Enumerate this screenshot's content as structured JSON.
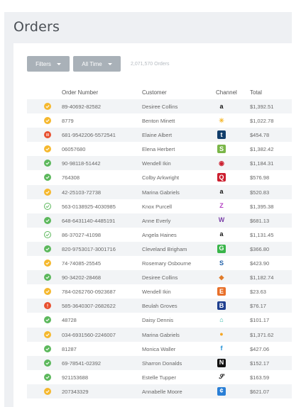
{
  "page": {
    "title": "Orders"
  },
  "toolbar": {
    "filters_label": "Filters",
    "time_label": "All Time",
    "count_text": "2,071,570 Orders"
  },
  "table": {
    "headers": {
      "order_number": "Order Number",
      "customer": "Customer",
      "channel": "Channel",
      "total": "Total"
    },
    "rows": [
      {
        "status": "pending",
        "order": "89-40692-82582",
        "customer": "Desiree Collins",
        "channel": "amazon-icon",
        "total": "$1,392.51"
      },
      {
        "status": "pending",
        "order": "8779",
        "customer": "Benton Minett",
        "channel": "walmart-icon",
        "total": "$1,022.78"
      },
      {
        "status": "paused",
        "order": "681-9542206-5572541",
        "customer": "Elaine Albert",
        "channel": "shopify-store-icon",
        "total": "$454.78"
      },
      {
        "status": "pending",
        "order": "06057680",
        "customer": "Elena Herbert",
        "channel": "shopify-icon",
        "total": "$1,382.42"
      },
      {
        "status": "complete",
        "order": "90-98118-51442",
        "customer": "Wendell Ikin",
        "channel": "target-icon",
        "total": "$1,184.31"
      },
      {
        "status": "complete",
        "order": "764308",
        "customer": "Colby Arkwright",
        "channel": "red-square-icon",
        "total": "$576.98"
      },
      {
        "status": "pending",
        "order": "42-25103-72738",
        "customer": "Marina Gabriels",
        "channel": "amazon-icon",
        "total": "$520.83"
      },
      {
        "status": "complete-outline",
        "order": "563-0138925-4030985",
        "customer": "Knox Purcell",
        "channel": "z-icon",
        "total": "$1,395.38"
      },
      {
        "status": "complete",
        "order": "648-6431140-4485191",
        "customer": "Anne Everly",
        "channel": "w-icon",
        "total": "$681.13"
      },
      {
        "status": "complete-outline",
        "order": "86-37027-41098",
        "customer": "Angela Haines",
        "channel": "amazon-icon",
        "total": "$1,131.45"
      },
      {
        "status": "complete",
        "order": "820-9753017-3001716",
        "customer": "Cleveland Brigham",
        "channel": "green-circle-icon",
        "total": "$366.80"
      },
      {
        "status": "pending",
        "order": "74-74085-25545",
        "customer": "Rosemary Osbourne",
        "channel": "blue-s-icon",
        "total": "$423.90"
      },
      {
        "status": "complete",
        "order": "90-34202-28468",
        "customer": "Desiree Collins",
        "channel": "cube-icon",
        "total": "$1,182.74"
      },
      {
        "status": "pending",
        "order": "784-0262760-0923687",
        "customer": "Wendell Ikin",
        "channel": "etsy-icon",
        "total": "$23.63"
      },
      {
        "status": "error",
        "order": "585-3640307-2682622",
        "customer": "Beulah Groves",
        "channel": "b-icon",
        "total": "$76.17"
      },
      {
        "status": "complete",
        "order": "48728",
        "customer": "Daisy Dennis",
        "channel": "house-icon",
        "total": "$101.17"
      },
      {
        "status": "pending",
        "order": "034-6931560-2246007",
        "customer": "Marina Gabriels",
        "channel": "orange-blob-icon",
        "total": "$1,371.62"
      },
      {
        "status": "complete",
        "order": "81287",
        "customer": "Monica Waller",
        "channel": "f-icon",
        "total": "$427.06"
      },
      {
        "status": "complete",
        "order": "69-78541-02392",
        "customer": "Sharron Donalds",
        "channel": "n-icon",
        "total": "$152.17"
      },
      {
        "status": "complete",
        "order": "921153688",
        "customer": "Estelle Tupper",
        "channel": "script-icon",
        "total": "$163.59"
      },
      {
        "status": "pending",
        "order": "207343329",
        "customer": "Annabelle Moore",
        "channel": "blue-badge-icon",
        "total": "$621.07"
      }
    ]
  },
  "colors": {
    "pending": "#f5b82e",
    "complete": "#5cb85c",
    "error": "#e8502f",
    "button": "#a9b1b8"
  }
}
